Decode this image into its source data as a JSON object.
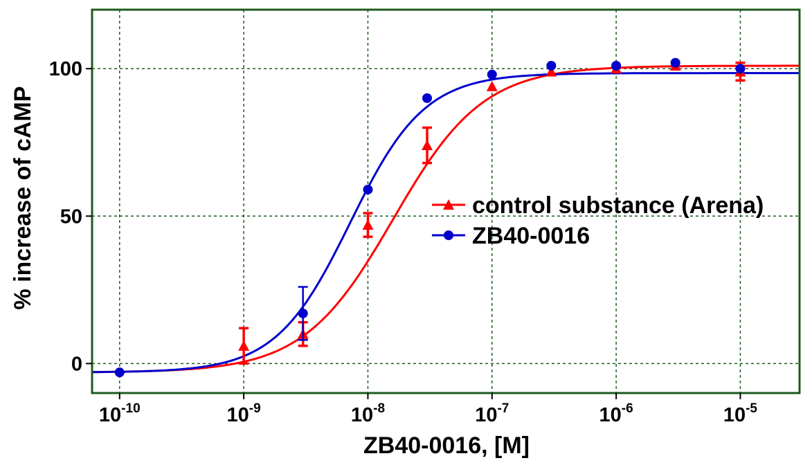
{
  "chart_data": {
    "type": "scatter",
    "x_scale": "log",
    "xlabel": "ZB40-0016, [M]",
    "ylabel": "% increase of cAMP",
    "xlim": [
      6e-11,
      3e-05
    ],
    "ylim": [
      -10,
      120
    ],
    "x_ticks": [
      {
        "value": 1e-10,
        "base": "10",
        "exp": "-10"
      },
      {
        "value": 1e-09,
        "base": "10",
        "exp": "-9"
      },
      {
        "value": 1e-08,
        "base": "10",
        "exp": "-8"
      },
      {
        "value": 1e-07,
        "base": "10",
        "exp": "-7"
      },
      {
        "value": 1e-06,
        "base": "10",
        "exp": "-6"
      },
      {
        "value": 1e-05,
        "base": "10",
        "exp": "-5"
      }
    ],
    "y_ticks": [
      0,
      50,
      100
    ],
    "grid": true,
    "legend_position": "center-right",
    "colors": {
      "frame": "#1e5a1e",
      "grid": "#1e5a1e"
    },
    "series": [
      {
        "name": "control substance (Arena)",
        "marker": "triangle",
        "color": "#ff0000",
        "x": [
          1e-09,
          3e-09,
          1e-08,
          3e-08,
          1e-07,
          3e-07,
          1e-06,
          3e-06,
          1e-05
        ],
        "y": [
          6,
          10,
          47,
          74,
          94,
          99,
          100,
          101,
          99
        ],
        "error": [
          6,
          4,
          4,
          6,
          0,
          0,
          0,
          0,
          3
        ],
        "fit": {
          "bottom": -3,
          "top": 101,
          "ec50": 1.6e-08,
          "hill": 1.2
        }
      },
      {
        "name": "ZB40-0016",
        "marker": "circle",
        "color": "#0000cc",
        "x": [
          1e-10,
          3e-09,
          1e-08,
          3e-08,
          1e-07,
          3e-07,
          1e-06,
          3e-06,
          1e-05
        ],
        "y": [
          -3,
          17,
          59,
          90,
          98,
          101,
          101,
          102,
          100
        ],
        "error": [
          0,
          9,
          0,
          0,
          0,
          0,
          0,
          0,
          0
        ],
        "fit": {
          "bottom": -3,
          "top": 98.5,
          "ec50": 7.2e-09,
          "hill": 1.45
        }
      }
    ]
  }
}
